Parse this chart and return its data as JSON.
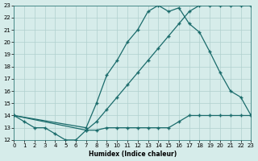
{
  "xlabel": "Humidex (Indice chaleur)",
  "bg_color": "#d6ecea",
  "line_color": "#1a6b6b",
  "grid_color": "#b0d0ce",
  "xlim": [
    0,
    23
  ],
  "ylim": [
    12,
    23
  ],
  "yticks": [
    12,
    13,
    14,
    15,
    16,
    17,
    18,
    19,
    20,
    21,
    22,
    23
  ],
  "xticks": [
    0,
    1,
    2,
    3,
    4,
    5,
    6,
    7,
    8,
    9,
    10,
    11,
    12,
    13,
    14,
    15,
    16,
    17,
    18,
    19,
    20,
    21,
    22,
    23
  ],
  "line1_x": [
    0,
    1,
    2,
    3,
    4,
    5,
    6,
    7,
    8,
    9,
    10,
    11,
    12,
    13,
    14,
    15,
    16,
    17,
    18,
    19,
    20,
    21,
    22,
    23
  ],
  "line1_y": [
    14.0,
    13.5,
    13.0,
    13.0,
    12.5,
    12.0,
    12.0,
    12.8,
    13.5,
    14.5,
    15.5,
    16.5,
    17.5,
    18.5,
    19.5,
    20.5,
    21.5,
    22.5,
    23.0,
    23.0,
    23.0,
    23.0,
    23.0,
    23.0
  ],
  "line2_x": [
    0,
    7,
    8,
    9,
    10,
    11,
    12,
    13,
    14,
    15,
    16,
    17,
    18,
    19,
    20,
    21,
    22,
    23
  ],
  "line2_y": [
    14.0,
    13.0,
    15.0,
    17.3,
    18.5,
    20.0,
    21.0,
    22.5,
    23.0,
    22.5,
    22.8,
    21.5,
    20.8,
    19.2,
    17.5,
    16.0,
    15.5,
    14.0
  ],
  "line3_x": [
    0,
    7,
    8,
    9,
    10,
    11,
    12,
    13,
    14,
    15,
    16,
    17,
    18,
    19,
    20,
    21,
    22,
    23
  ],
  "line3_y": [
    14.0,
    12.8,
    12.8,
    13.0,
    13.0,
    13.0,
    13.0,
    13.0,
    13.0,
    13.0,
    13.5,
    14.0,
    14.0,
    14.0,
    14.0,
    14.0,
    14.0,
    14.0
  ]
}
